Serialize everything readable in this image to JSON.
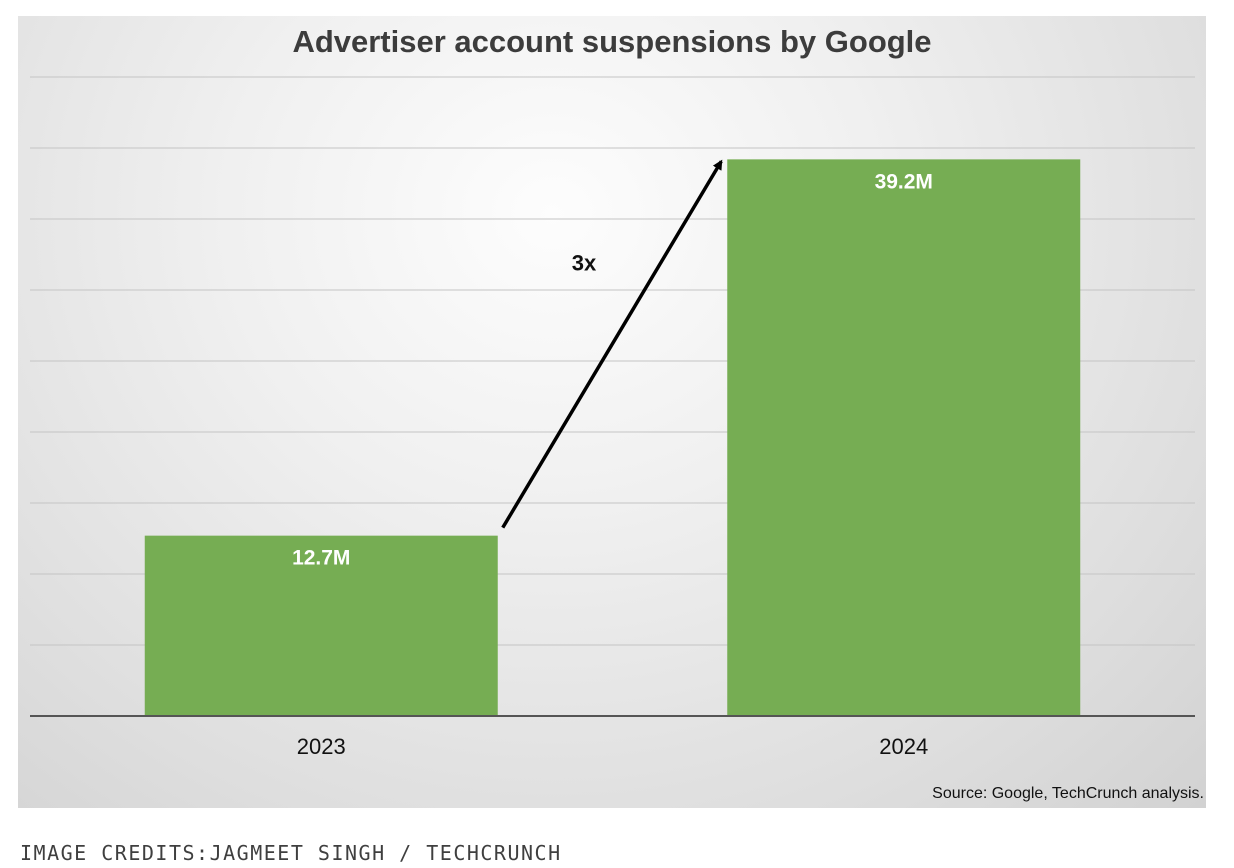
{
  "chart_data": {
    "type": "bar",
    "title": "Advertiser account suspensions by Google",
    "categories": [
      "2023",
      "2024"
    ],
    "values": [
      12.7,
      39.2
    ],
    "data_labels": [
      "12.7M",
      "39.2M"
    ],
    "ylim": [
      0,
      45
    ],
    "gridlines": [
      5,
      10,
      15,
      20,
      25,
      30,
      35,
      40,
      45
    ],
    "grid": true,
    "legend": "none",
    "bar_color": "#76ad53",
    "annotation": {
      "text": "3x",
      "arrow": "from 2023 bar to 2024 bar"
    },
    "source": "Source: Google, TechCrunch analysis."
  },
  "credits": "IMAGE CREDITS:JAGMEET SINGH / TECHCRUNCH"
}
